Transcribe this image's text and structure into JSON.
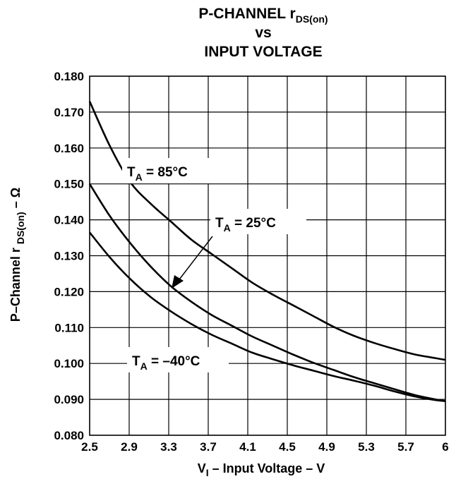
{
  "chart_data": {
    "type": "line",
    "title": {
      "line1_main": "P-CHANNEL r",
      "line1_sub": "DS(on)",
      "line2": "vs",
      "line3": "INPUT VOLTAGE"
    },
    "xlabel": {
      "main1": "V",
      "sub": "I",
      "main2": " – Input Voltage – V"
    },
    "ylabel": {
      "main1": "P–Channel r ",
      "sub": "DS(on)",
      "main2": " – Ω"
    },
    "xlim": [
      2.5,
      6
    ],
    "ylim": [
      0.08,
      0.18
    ],
    "x_ticks": [
      "2.5",
      "2.9",
      "3.3",
      "3.7",
      "4.1",
      "4.5",
      "4.9",
      "5.3",
      "5.7",
      "6"
    ],
    "y_ticks": [
      "0.080",
      "0.090",
      "0.100",
      "0.110",
      "0.120",
      "0.130",
      "0.140",
      "0.150",
      "0.160",
      "0.170",
      "0.180"
    ],
    "grid": true,
    "series": [
      {
        "name": "T_A = 85°C",
        "x": [
          2.5,
          2.7,
          2.9,
          3.1,
          3.3,
          3.5,
          3.7,
          3.9,
          4.1,
          4.3,
          4.5,
          4.7,
          4.9,
          5.1,
          5.3,
          5.5,
          5.7,
          5.9,
          6.0
        ],
        "y": [
          0.173,
          0.1605,
          0.1505,
          0.1445,
          0.1395,
          0.1345,
          0.1305,
          0.1265,
          0.1225,
          0.1192,
          0.1162,
          0.1132,
          0.1102,
          0.1077,
          0.1057,
          0.104,
          0.1025,
          0.1015,
          0.101
        ]
      },
      {
        "name": "T_A = 25°C",
        "x": [
          2.5,
          2.7,
          2.9,
          3.1,
          3.3,
          3.5,
          3.7,
          3.9,
          4.1,
          4.3,
          4.5,
          4.7,
          4.9,
          5.1,
          5.3,
          5.5,
          5.7,
          5.9,
          6.0
        ],
        "y": [
          0.15,
          0.141,
          0.1335,
          0.127,
          0.1215,
          0.1172,
          0.1135,
          0.1105,
          0.1075,
          0.105,
          0.1025,
          0.1002,
          0.0982,
          0.0962,
          0.0945,
          0.0928,
          0.0912,
          0.09,
          0.0895
        ]
      },
      {
        "name": "T_A = –40°C",
        "x": [
          2.5,
          2.7,
          2.9,
          3.1,
          3.3,
          3.5,
          3.7,
          3.9,
          4.1,
          4.3,
          4.5,
          4.7,
          4.9,
          5.1,
          5.3,
          5.5,
          5.7,
          5.9,
          6.0
        ],
        "y": [
          0.1365,
          0.1295,
          0.1235,
          0.1185,
          0.1145,
          0.111,
          0.108,
          0.1055,
          0.103,
          0.1012,
          0.0995,
          0.098,
          0.0965,
          0.0952,
          0.0938,
          0.0922,
          0.0908,
          0.0898,
          0.0895
        ]
      }
    ],
    "annotations": [
      {
        "prefix": "T",
        "sub": "A",
        "text": "  = 85°C",
        "series": "T_A = 85°C"
      },
      {
        "prefix": "T",
        "sub": "A",
        "text": "  = 25°C",
        "series": "T_A = 25°C",
        "arrow": true
      },
      {
        "prefix": "T",
        "sub": "A",
        "text": "  = –40°C",
        "series": "T_A = –40°C"
      }
    ]
  }
}
